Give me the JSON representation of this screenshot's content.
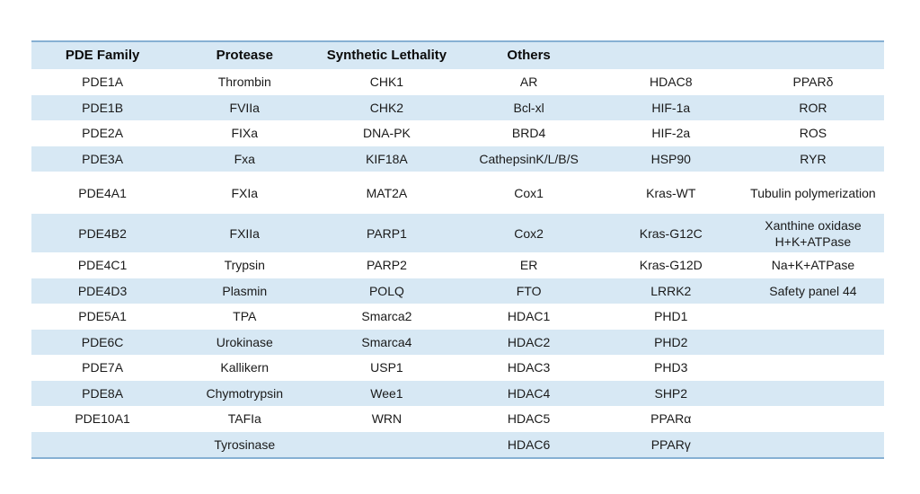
{
  "table": {
    "header": [
      "PDE Family",
      "Protease",
      "Synthetic Lethality",
      "Others",
      "",
      ""
    ],
    "rows": [
      [
        "PDE1A",
        "Thrombin",
        "CHK1",
        "AR",
        "HDAC8",
        "PPARδ"
      ],
      [
        "PDE1B",
        "FVIIa",
        "CHK2",
        "Bcl-xl",
        "HIF-1a",
        "ROR"
      ],
      [
        "PDE2A",
        "FIXa",
        "DNA-PK",
        "BRD4",
        "HIF-2a",
        "ROS"
      ],
      [
        "PDE3A",
        "Fxa",
        "KIF18A",
        "CathepsinK/L/B/S",
        "HSP90",
        "RYR"
      ],
      [
        "PDE4A1",
        "FXIa",
        "MAT2A",
        "Cox1",
        "Kras-WT",
        "Tubulin polymerization"
      ],
      [
        "PDE4B2",
        "FXIIa",
        "PARP1",
        "Cox2",
        "Kras-G12C",
        "Xanthine oxidase\nH+K+ATPase"
      ],
      [
        "PDE4C1",
        "Trypsin",
        "PARP2",
        "ER",
        "Kras-G12D",
        "Na+K+ATPase"
      ],
      [
        "PDE4D3",
        "Plasmin",
        "POLQ",
        "FTO",
        "LRRK2",
        "Safety panel 44"
      ],
      [
        "PDE5A1",
        "TPA",
        "Smarca2",
        "HDAC1",
        "PHD1",
        ""
      ],
      [
        "PDE6C",
        "Urokinase",
        "Smarca4",
        "HDAC2",
        "PHD2",
        ""
      ],
      [
        "PDE7A",
        "Kallikern",
        "USP1",
        "HDAC3",
        "PHD3",
        ""
      ],
      [
        "PDE8A",
        "Chymotrypsin",
        "Wee1",
        "HDAC4",
        "SHP2",
        ""
      ],
      [
        "PDE10A1",
        "TAFIa",
        "WRN",
        "HDAC5",
        "PPARα",
        ""
      ],
      [
        "",
        "Tyrosinase",
        "",
        "HDAC6",
        "PPARγ",
        ""
      ]
    ],
    "colors": {
      "row_highlight": "#d7e8f4",
      "border": "#86b0d3",
      "text": "#1a1a1a"
    }
  }
}
